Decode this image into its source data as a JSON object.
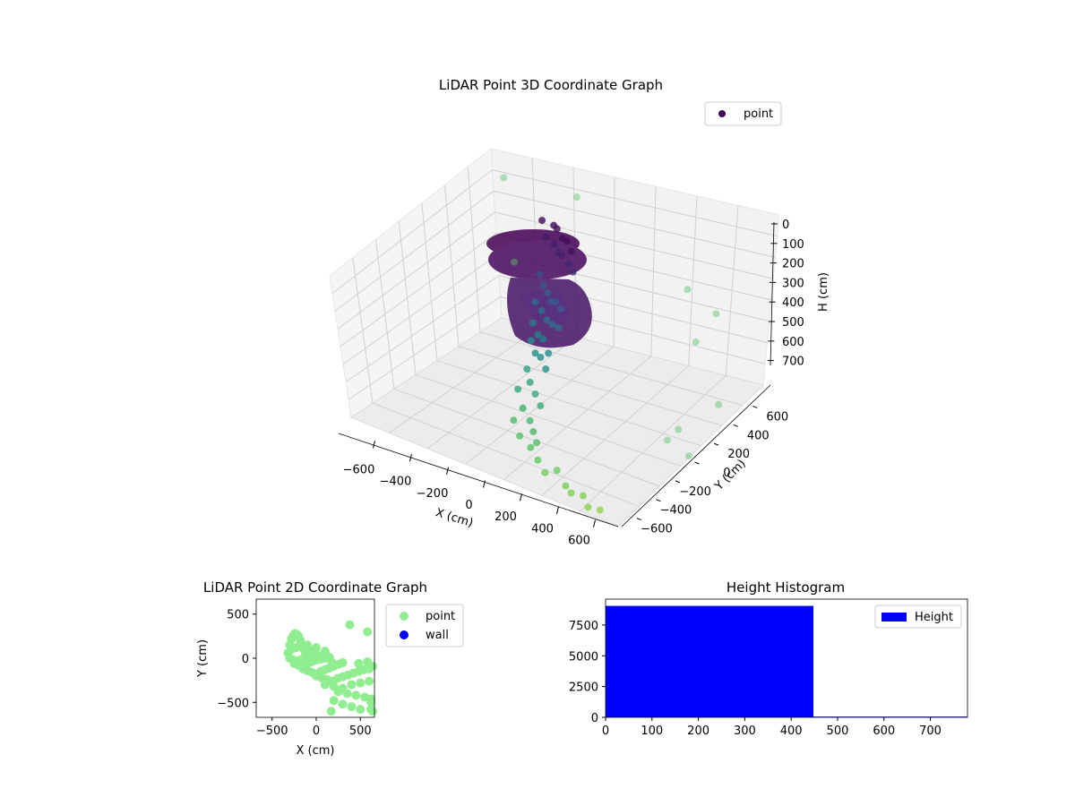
{
  "chart_data": [
    {
      "type": "scatter3d",
      "title": "LiDAR Point 3D Coordinate Graph",
      "xlabel": "X (cm)",
      "ylabel": "Y (cm)",
      "zlabel": "H (cm)",
      "xlim": [
        -700,
        700
      ],
      "ylim": [
        -700,
        700
      ],
      "zlim": [
        750,
        0
      ],
      "xticks": [
        "−600",
        "−400",
        "−200",
        "0",
        "200",
        "400",
        "600"
      ],
      "yticks": [
        "−600",
        "−400",
        "−200",
        "0",
        "200",
        "400",
        "600"
      ],
      "zticks": [
        "0",
        "100",
        "200",
        "300",
        "400",
        "500",
        "600",
        "700"
      ],
      "legend": {
        "placement": "top-right",
        "entries": [
          {
            "name": "point",
            "color": "#440154"
          }
        ]
      },
      "grid": true,
      "colormap": "viridis-by-height",
      "series": [
        {
          "name": "point",
          "x": [
            -150,
            -100,
            -60,
            -20,
            20,
            60,
            -130,
            -80,
            -40,
            0,
            40,
            80,
            -150,
            -110,
            -70,
            -30,
            10,
            50,
            -140,
            -90,
            -40,
            10,
            60,
            -120,
            -70,
            -20,
            30,
            -100,
            -50,
            0,
            50,
            -60,
            -10,
            40,
            90,
            -40,
            20,
            80,
            120,
            160,
            0,
            60,
            140,
            200,
            260,
            300,
            380,
            420,
            460,
            520,
            560,
            500,
            600,
            620,
            650,
            -520,
            -380,
            -250,
            480,
            550,
            620
          ],
          "y": [
            100,
            120,
            80,
            60,
            30,
            0,
            100,
            90,
            50,
            20,
            10,
            -20,
            80,
            40,
            10,
            -30,
            -60,
            -80,
            20,
            -10,
            -50,
            -90,
            -120,
            -40,
            -80,
            -120,
            -160,
            -90,
            -140,
            -180,
            -220,
            -200,
            -260,
            -300,
            -340,
            -320,
            -380,
            -420,
            -460,
            -500,
            -430,
            -480,
            -520,
            -560,
            -600,
            -560,
            -620,
            -640,
            -600,
            -660,
            -620,
            300,
            200,
            -100,
            300,
            400,
            250,
            600,
            250,
            500,
            100
          ],
          "h": [
            20,
            30,
            20,
            40,
            30,
            50,
            80,
            90,
            100,
            90,
            110,
            120,
            230,
            250,
            260,
            270,
            250,
            260,
            320,
            330,
            340,
            330,
            320,
            380,
            400,
            390,
            420,
            430,
            450,
            440,
            460,
            500,
            520,
            540,
            560,
            540,
            580,
            600,
            620,
            640,
            620,
            650,
            660,
            680,
            700,
            690,
            710,
            720,
            730,
            740,
            750,
            150,
            300,
            600,
            200,
            50,
            300,
            100,
            700,
            650,
            720
          ]
        }
      ]
    },
    {
      "type": "scatter",
      "title": "LiDAR Point 2D Coordinate Graph",
      "xlabel": "X (cm)",
      "ylabel": "Y (cm)",
      "xlim": [
        -680,
        660
      ],
      "ylim": [
        -670,
        670
      ],
      "xticks": [
        "−500",
        "0",
        "500"
      ],
      "yticks": [
        "500",
        "0",
        "−500"
      ],
      "legend": {
        "placement": "outside-right",
        "entries": [
          {
            "name": "point",
            "color": "#90ee90"
          },
          {
            "name": "wall",
            "color": "#0000ff"
          }
        ]
      },
      "series": [
        {
          "name": "point",
          "color": "#90ee90",
          "x": [
            -320,
            -300,
            -280,
            -260,
            -240,
            -220,
            -200,
            -180,
            -160,
            -140,
            -120,
            -100,
            -300,
            -260,
            -220,
            -180,
            -140,
            -100,
            -60,
            -20,
            -280,
            -230,
            -180,
            -130,
            -80,
            -30,
            20,
            70,
            -250,
            -200,
            -150,
            -100,
            -50,
            0,
            50,
            100,
            150,
            -150,
            -100,
            -50,
            0,
            50,
            100,
            150,
            200,
            250,
            300,
            0,
            60,
            120,
            180,
            240,
            300,
            360,
            420,
            480,
            540,
            600,
            640,
            100,
            200,
            300,
            400,
            500,
            600,
            250,
            350,
            450,
            550,
            620,
            -100,
            0,
            100,
            180,
            480,
            580,
            600,
            620,
            200,
            300,
            400,
            500,
            640,
            380,
            170,
            580,
            620
          ],
          "y": [
            60,
            150,
            220,
            260,
            280,
            270,
            250,
            200,
            150,
            100,
            60,
            20,
            0,
            -20,
            -40,
            -20,
            0,
            30,
            50,
            80,
            100,
            120,
            140,
            110,
            90,
            60,
            30,
            0,
            -60,
            -80,
            -100,
            -60,
            -40,
            -20,
            -10,
            0,
            10,
            -120,
            -140,
            -160,
            -180,
            -150,
            -130,
            -110,
            -90,
            -70,
            -50,
            -200,
            -220,
            -240,
            -260,
            -230,
            -210,
            -190,
            -170,
            -150,
            -130,
            -110,
            -90,
            -300,
            -320,
            -340,
            -300,
            -280,
            -260,
            -380,
            -400,
            -420,
            -440,
            -460,
            150,
            120,
            80,
            -50,
            -60,
            -40,
            -120,
            -500,
            -480,
            -520,
            -550,
            -580,
            -600,
            380,
            -600,
            300,
            -580
          ]
        },
        {
          "name": "wall",
          "color": "#0000ff",
          "x": [],
          "y": []
        }
      ]
    },
    {
      "type": "bar",
      "title": "Height Histogram",
      "xlabel": "",
      "ylabel": "",
      "xlim": [
        0,
        780
      ],
      "ylim": [
        0,
        9600
      ],
      "xticks": [
        "0",
        "100",
        "200",
        "300",
        "400",
        "500",
        "600",
        "700"
      ],
      "yticks": [
        "0",
        "2500",
        "5000",
        "7500"
      ],
      "legend": {
        "placement": "top-right",
        "entries": [
          {
            "name": "Height",
            "color": "#0000ff"
          }
        ]
      },
      "series": [
        {
          "name": "Height",
          "color": "#0000ff",
          "bins": [
            [
              0,
              448,
              9050
            ],
            [
              448,
              780,
              60
            ]
          ]
        }
      ]
    }
  ]
}
